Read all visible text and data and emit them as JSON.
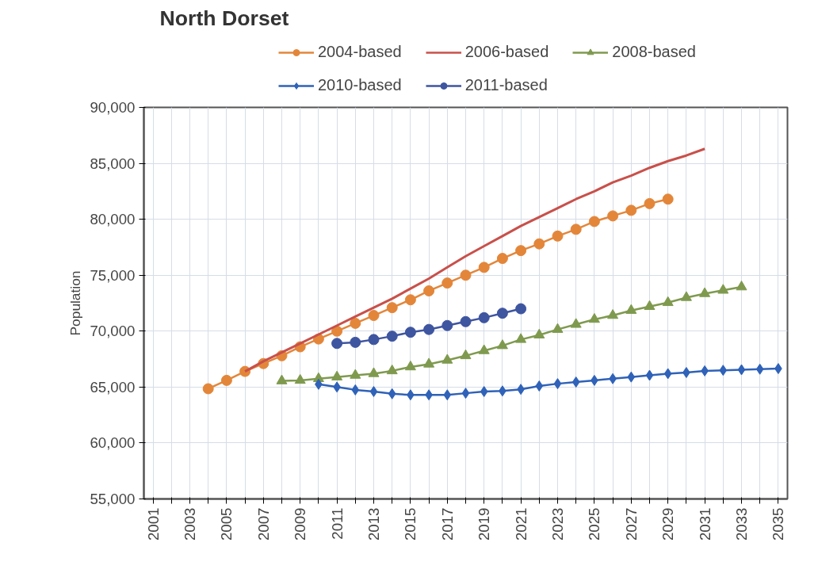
{
  "chart_data": {
    "type": "line",
    "title": "North Dorset",
    "ylabel": "Population",
    "xlim": [
      2000.5,
      2035.5
    ],
    "ylim": [
      55000,
      90000
    ],
    "xticks": [
      2001,
      {
        "value": 2002,
        "label": null
      },
      2003,
      {
        "value": 2004,
        "label": null
      },
      2005,
      {
        "value": 2006,
        "label": null
      },
      2007,
      {
        "value": 2008,
        "label": null
      },
      2009,
      {
        "value": 2010,
        "label": null
      },
      2011,
      {
        "value": 2012,
        "label": null
      },
      2013,
      {
        "value": 2014,
        "label": null
      },
      2015,
      {
        "value": 2016,
        "label": null
      },
      2017,
      {
        "value": 2018,
        "label": null
      },
      2019,
      {
        "value": 2020,
        "label": null
      },
      2021,
      {
        "value": 2022,
        "label": null
      },
      2023,
      {
        "value": 2024,
        "label": null
      },
      2025,
      {
        "value": 2026,
        "label": null
      },
      2027,
      {
        "value": 2028,
        "label": null
      },
      2029,
      {
        "value": 2030,
        "label": null
      },
      2031,
      {
        "value": 2032,
        "label": null
      },
      2033,
      {
        "value": 2034,
        "label": null
      },
      2035
    ],
    "yticks": [
      {
        "value": 55000,
        "label": "55,000"
      },
      {
        "value": 60000,
        "label": "60,000"
      },
      {
        "value": 65000,
        "label": "65,000"
      },
      {
        "value": 70000,
        "label": "70,000"
      },
      {
        "value": 75000,
        "label": "75,000"
      },
      {
        "value": 80000,
        "label": "80,000"
      },
      {
        "value": 85000,
        "label": "85,000"
      },
      {
        "value": 90000,
        "label": "90,000"
      }
    ],
    "grid": true,
    "legend": "top",
    "series": [
      {
        "name": "2004-based",
        "color": "#e3863a",
        "marker": "circle",
        "x": [
          2004,
          2005,
          2006,
          2007,
          2008,
          2009,
          2010,
          2011,
          2012,
          2013,
          2014,
          2015,
          2016,
          2017,
          2018,
          2019,
          2020,
          2021,
          2022,
          2023,
          2024,
          2025,
          2026,
          2027,
          2028,
          2029
        ],
        "values": [
          64850,
          65600,
          66400,
          67100,
          67800,
          68600,
          69300,
          70000,
          70700,
          71400,
          72100,
          72800,
          73600,
          74300,
          75000,
          75700,
          76500,
          77200,
          77800,
          78500,
          79100,
          79800,
          80300,
          80800,
          81400,
          81800
        ]
      },
      {
        "name": "2006-based",
        "color": "#c9504a",
        "marker": "none",
        "x": [
          2006,
          2007,
          2008,
          2009,
          2010,
          2011,
          2012,
          2013,
          2014,
          2015,
          2016,
          2017,
          2018,
          2019,
          2020,
          2021,
          2022,
          2023,
          2024,
          2025,
          2026,
          2027,
          2028,
          2029,
          2030,
          2031
        ],
        "values": [
          66400,
          67300,
          68100,
          68900,
          69700,
          70500,
          71300,
          72100,
          72900,
          73800,
          74700,
          75700,
          76700,
          77600,
          78500,
          79400,
          80200,
          81000,
          81800,
          82500,
          83300,
          83900,
          84600,
          85200,
          85700,
          86300
        ]
      },
      {
        "name": "2008-based",
        "color": "#7f9a4e",
        "marker": "triangle",
        "x": [
          2008,
          2009,
          2010,
          2011,
          2012,
          2013,
          2014,
          2015,
          2016,
          2017,
          2018,
          2019,
          2020,
          2021,
          2022,
          2023,
          2024,
          2025,
          2026,
          2027,
          2028,
          2029,
          2030,
          2031,
          2032,
          2033
        ],
        "values": [
          65550,
          65600,
          65750,
          65900,
          66050,
          66200,
          66450,
          66800,
          67050,
          67400,
          67800,
          68250,
          68700,
          69250,
          69650,
          70150,
          70600,
          71050,
          71400,
          71850,
          72200,
          72550,
          73000,
          73350,
          73650,
          73950
        ]
      },
      {
        "name": "2010-based",
        "color": "#2f62b8",
        "marker": "diamond",
        "x": [
          2010,
          2011,
          2012,
          2013,
          2014,
          2015,
          2016,
          2017,
          2018,
          2019,
          2020,
          2021,
          2022,
          2023,
          2024,
          2025,
          2026,
          2027,
          2028,
          2029,
          2030,
          2031,
          2032,
          2033,
          2034,
          2035
        ],
        "values": [
          65250,
          65000,
          64750,
          64600,
          64400,
          64300,
          64300,
          64300,
          64450,
          64600,
          64650,
          64800,
          65100,
          65300,
          65450,
          65600,
          65750,
          65900,
          66050,
          66200,
          66300,
          66450,
          66500,
          66550,
          66600,
          66650
        ]
      },
      {
        "name": "2011-based",
        "color": "#3e55a0",
        "marker": "circle",
        "x": [
          2011,
          2012,
          2013,
          2014,
          2015,
          2016,
          2017,
          2018,
          2019,
          2020,
          2021
        ],
        "values": [
          68900,
          69000,
          69250,
          69550,
          69900,
          70150,
          70500,
          70850,
          71200,
          71600,
          72000
        ]
      }
    ]
  }
}
